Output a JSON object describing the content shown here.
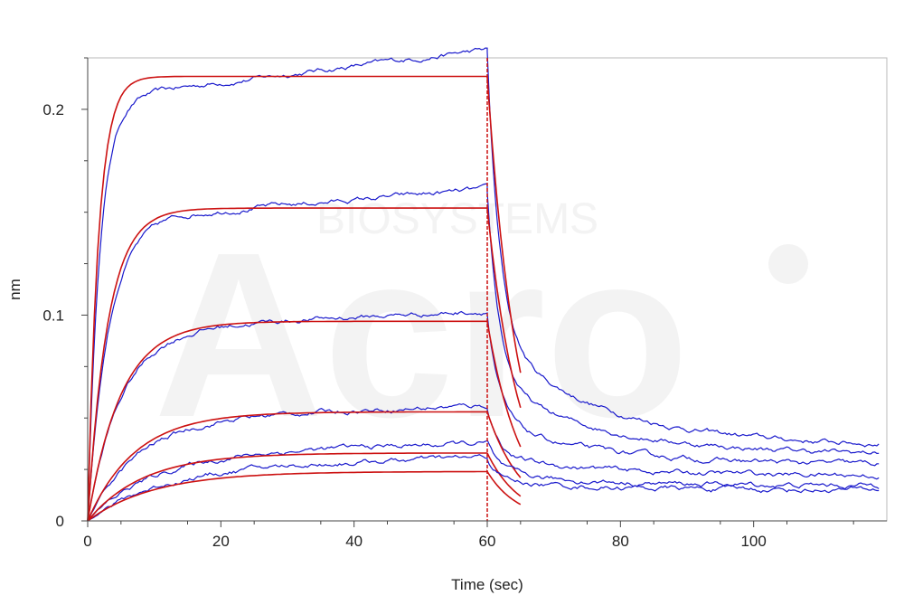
{
  "chart_data": {
    "type": "line",
    "title": "",
    "xlabel": "Time (sec)",
    "ylabel": "nm",
    "xlim": [
      0,
      120
    ],
    "ylim": [
      0,
      0.225
    ],
    "x_ticks": [
      0,
      20,
      40,
      60,
      80,
      100
    ],
    "x_tick_labels": [
      "0",
      "20",
      "40",
      "60",
      "80",
      "100"
    ],
    "y_ticks": [
      0,
      0.1,
      0.2
    ],
    "y_tick_labels": [
      "0",
      "0.1",
      "0.2"
    ],
    "grid": false,
    "legend": "none",
    "dissociation_start": 60,
    "association_end": 60,
    "colors": {
      "measured": "#1a1acc",
      "fit": "#cc1111",
      "divider": "#cc1111"
    },
    "series": [
      {
        "kind": "measured",
        "assoc_plateau": 0.205,
        "assoc_k": 0.55,
        "assoc_drift": 0.0004,
        "assoc_end": 0.227,
        "diss_end": 0.036
      },
      {
        "kind": "fit",
        "plateau": 0.216,
        "k": 0.62,
        "end_at_60": 0.216,
        "end_at_65": 0.072
      },
      {
        "kind": "measured",
        "assoc_plateau": 0.146,
        "assoc_k": 0.32,
        "assoc_drift": 0.00025,
        "assoc_end": 0.158,
        "diss_end": 0.032
      },
      {
        "kind": "fit",
        "plateau": 0.152,
        "k": 0.33,
        "end_at_60": 0.152,
        "end_at_65": 0.055
      },
      {
        "kind": "measured",
        "assoc_plateau": 0.093,
        "assoc_k": 0.2,
        "assoc_drift": 0.00015,
        "assoc_end": 0.101,
        "diss_end": 0.027
      },
      {
        "kind": "fit",
        "plateau": 0.097,
        "k": 0.2,
        "end_at_60": 0.097,
        "end_at_65": 0.036
      },
      {
        "kind": "measured",
        "assoc_plateau": 0.05,
        "assoc_k": 0.13,
        "assoc_drift": 0.0001,
        "assoc_end": 0.055,
        "diss_end": 0.022
      },
      {
        "kind": "fit",
        "plateau": 0.053,
        "k": 0.14,
        "end_at_60": 0.053,
        "end_at_65": 0.021
      },
      {
        "kind": "measured",
        "assoc_plateau": 0.033,
        "assoc_k": 0.1,
        "assoc_drift": 8e-05,
        "assoc_end": 0.038,
        "diss_end": 0.017
      },
      {
        "kind": "fit",
        "plateau": 0.033,
        "k": 0.12,
        "end_at_60": 0.033,
        "end_at_65": 0.012
      },
      {
        "kind": "measured",
        "assoc_plateau": 0.026,
        "assoc_k": 0.09,
        "assoc_drift": 8e-05,
        "assoc_end": 0.03,
        "diss_end": 0.015
      },
      {
        "kind": "fit",
        "plateau": 0.024,
        "k": 0.1,
        "end_at_60": 0.024,
        "end_at_65": 0.008
      }
    ],
    "watermark": {
      "brand": "Acro",
      "subtitle": "BIOSYSTEMS"
    }
  }
}
